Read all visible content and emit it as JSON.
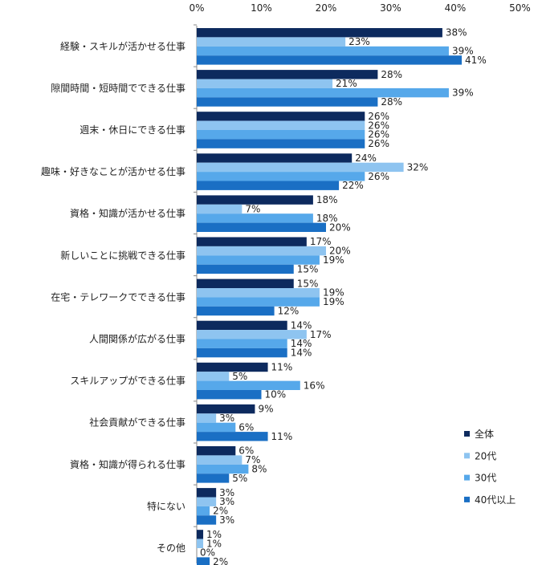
{
  "chart_data": {
    "type": "bar",
    "orientation": "horizontal",
    "title": "",
    "xlabel": "",
    "ylabel": "",
    "xlim": [
      0,
      50
    ],
    "ticks": [
      "0%",
      "10%",
      "20%",
      "30%",
      "40%",
      "50%"
    ],
    "tick_values": [
      0,
      10,
      20,
      30,
      40,
      50
    ],
    "grid": false,
    "legend_position": "bottom-right",
    "categories": [
      "経験・スキルが活かせる仕事",
      "隙間時間・短時間でできる仕事",
      "週末・休日にできる仕事",
      "趣味・好きなことが活かせる仕事",
      "資格・知識が活かせる仕事",
      "新しいことに挑戦できる仕事",
      "在宅・テレワークでできる仕事",
      "人間関係が広がる仕事",
      "スキルアップができる仕事",
      "社会貢献ができる仕事",
      "資格・知識が得られる仕事",
      "特にない",
      "その他"
    ],
    "series": [
      {
        "name": "全体",
        "color": "#0d2a5e",
        "values": [
          38,
          28,
          26,
          24,
          18,
          17,
          15,
          14,
          11,
          9,
          6,
          3,
          1
        ],
        "labels": [
          "38%",
          "28%",
          "26%",
          "24%",
          "18%",
          "17%",
          "15%",
          "14%",
          "11%",
          "9%",
          "6%",
          "3%",
          "1%"
        ]
      },
      {
        "name": "20代",
        "color": "#8ec4f0",
        "values": [
          23,
          21,
          26,
          32,
          7,
          20,
          19,
          17,
          5,
          3,
          7,
          3,
          1
        ],
        "labels": [
          "23%",
          "21%",
          "26%",
          "32%",
          "7%",
          "20%",
          "19%",
          "17%",
          "5%",
          "3%",
          "7%",
          "3%",
          "1%"
        ]
      },
      {
        "name": "30代",
        "color": "#56a8ea",
        "values": [
          39,
          39,
          26,
          26,
          18,
          19,
          19,
          14,
          16,
          6,
          8,
          2,
          0
        ],
        "labels": [
          "39%",
          "39%",
          "26%",
          "26%",
          "18%",
          "19%",
          "19%",
          "14%",
          "16%",
          "6%",
          "8%",
          "2%",
          "0%"
        ]
      },
      {
        "name": "40代以上",
        "color": "#1a6fc4",
        "values": [
          41,
          28,
          26,
          22,
          20,
          15,
          12,
          14,
          10,
          11,
          5,
          3,
          2
        ],
        "labels": [
          "41%",
          "28%",
          "26%",
          "22%",
          "20%",
          "15%",
          "12%",
          "14%",
          "10%",
          "11%",
          "5%",
          "3%",
          "2%"
        ]
      }
    ]
  }
}
